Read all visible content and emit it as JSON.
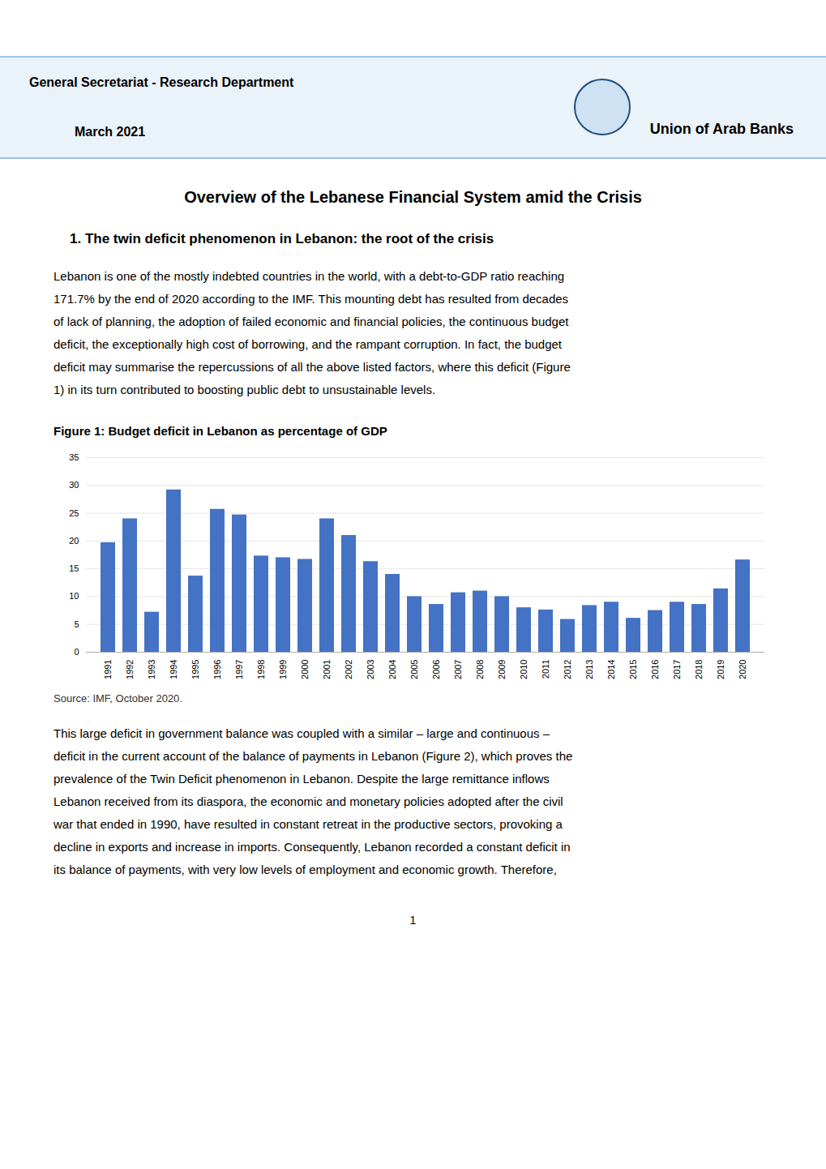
{
  "header": [
    "General Secretariat - Research Department",
    "March 2021",
    "Union of Arab Banks"
  ],
  "main_title": "Overview of the Lebanese Financial System amid the Crisis",
  "section_title": "1.  The twin deficit phenomenon in Lebanon: the root of the crisis",
  "body_text1_lines": [
    "Lebanon is one of the mostly indebted countries in the world, with a debt-to-GDP ratio reaching",
    "171.7% by the end of 2020 according to the IMF. This mounting debt has resulted from decades",
    "of lack of planning, the adoption of failed economic and financial policies, the continuous budget",
    "deficit, the exceptionally high cost of borrowing, and the rampant corruption. In fact, the budget",
    "deficit may summarise the repercussions of all the above listed factors, where this deficit (Figure",
    "1) in its turn contributed to boosting public debt to unsustainable levels."
  ],
  "body_text2_lines": [
    "This large deficit in government balance was coupled with a similar – large and continuous –",
    "deficit in the current account of the balance of payments in Lebanon (Figure 2), which proves the",
    "prevalence of the Twin Deficit phenomenon in Lebanon. Despite the large remittance inflows",
    "Lebanon received from its diaspora, the economic and monetary policies adopted after the civil",
    "war that ended in 1990, have resulted in constant retreat in the productive sectors, provoking a",
    "decline in exports and increase in imports. Consequently, Lebanon recorded a constant deficit in",
    "its balance of payments, with very low levels of employment and economic growth. Therefore,"
  ],
  "source": "Source: IMF, October 2020.",
  "page_number": "1",
  "chart_data": {
    "type": "bar",
    "title": "Figure 1: Budget deficit in Lebanon as percentage of GDP",
    "categories": [
      "1991",
      "1992",
      "1993",
      "1994",
      "1995",
      "1996",
      "1997",
      "1998",
      "1999",
      "2000",
      "2001",
      "2002",
      "2003",
      "2004",
      "2005",
      "2006",
      "2007",
      "2008",
      "2009",
      "2010",
      "2011",
      "2012",
      "2013",
      "2014",
      "2015",
      "2016",
      "2017",
      "2018",
      "2019",
      "2020"
    ],
    "values": [
      19.7,
      24.0,
      7.2,
      29.2,
      13.7,
      25.7,
      24.7,
      17.3,
      17.0,
      16.7,
      24.0,
      21.0,
      16.3,
      14.0,
      10.0,
      8.6,
      10.7,
      11.0,
      10.0,
      8.0,
      7.6,
      5.9,
      8.4,
      9.0,
      6.1,
      7.5,
      9.0,
      8.6,
      11.4,
      16.6
    ],
    "color": "#4472c4",
    "ylim": [
      0,
      35
    ],
    "yticks": [
      0,
      5,
      10,
      15,
      20,
      25,
      30,
      35
    ],
    "grid": true
  }
}
